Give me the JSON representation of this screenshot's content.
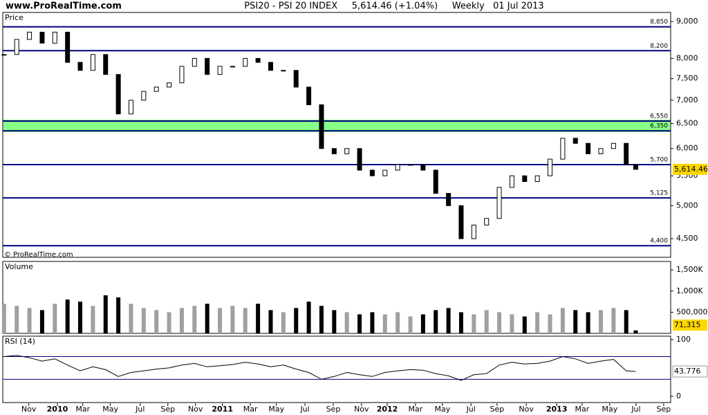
{
  "header": {
    "site": "www.ProRealTime.com",
    "title": "PSI20 - PSI 20 INDEX     5,614.46 (+1.04%)     Weekly   01 Jul 2013"
  },
  "chart_data": [
    {
      "type": "candlestick",
      "panel_label": "Price",
      "watermark": "© ProRealTime.com",
      "log_scale": true,
      "x": [
        0,
        4,
        8,
        12,
        16,
        20,
        24,
        28,
        32,
        36,
        40,
        44,
        48,
        52,
        56,
        60,
        64,
        68,
        72,
        76,
        80,
        84,
        88,
        92,
        96,
        100,
        104,
        108,
        112,
        116,
        120,
        124,
        128,
        132,
        136,
        140,
        144,
        148,
        152,
        156,
        160,
        164,
        168,
        172,
        176,
        180,
        184,
        188,
        192,
        196,
        199
      ],
      "values": [
        8100,
        8500,
        8700,
        8400,
        8700,
        7900,
        7700,
        8100,
        7600,
        6700,
        7000,
        7200,
        7300,
        7400,
        7800,
        8000,
        7600,
        7800,
        7800,
        8000,
        7900,
        7700,
        7700,
        7300,
        6900,
        6000,
        5900,
        6000,
        5600,
        5500,
        5600,
        5700,
        5700,
        5600,
        5200,
        5000,
        4500,
        4700,
        4800,
        5300,
        5500,
        5400,
        5500,
        5800,
        6200,
        6100,
        5900,
        6000,
        6100,
        5700,
        5614.46
      ],
      "last_value_label": "5,614.46",
      "xlim": [
        -0.4,
        210
      ],
      "ylim": [
        4240,
        9264
      ],
      "yticks": [
        {
          "value": 9000,
          "label": "9,000"
        },
        {
          "value": 8000,
          "label": "8,000"
        },
        {
          "value": 7500,
          "label": "7,500"
        },
        {
          "value": 7000,
          "label": "7,000"
        },
        {
          "value": 6500,
          "label": "6,500"
        },
        {
          "value": 6000,
          "label": "6,000"
        },
        {
          "value": 5500,
          "label": "5,500"
        },
        {
          "value": 5000,
          "label": "5,000"
        },
        {
          "value": 4500,
          "label": "4,500"
        }
      ],
      "xticks": [
        {
          "value": 7.8,
          "label": "Nov"
        },
        {
          "value": 16.8,
          "label": "2010"
        },
        {
          "value": 24.8,
          "label": "Mar"
        },
        {
          "value": 33.5,
          "label": "May"
        },
        {
          "value": 42.9,
          "label": "Jul"
        },
        {
          "value": 51.6,
          "label": "Sep"
        },
        {
          "value": 60.3,
          "label": "Nov"
        },
        {
          "value": 68.8,
          "label": "2011"
        },
        {
          "value": 77.6,
          "label": "Mar"
        },
        {
          "value": 85.8,
          "label": "May"
        },
        {
          "value": 94.8,
          "label": "Jul"
        },
        {
          "value": 103.7,
          "label": "Sep"
        },
        {
          "value": 112.6,
          "label": "Nov"
        },
        {
          "value": 120.7,
          "label": "2012"
        },
        {
          "value": 129.6,
          "label": "Mar"
        },
        {
          "value": 138.1,
          "label": "May"
        },
        {
          "value": 147.1,
          "label": "Jul"
        },
        {
          "value": 155.3,
          "label": "Sep"
        },
        {
          "value": 164.5,
          "label": "Nov"
        },
        {
          "value": 174.1,
          "label": "2013"
        },
        {
          "value": 182.1,
          "label": "Mar"
        },
        {
          "value": 190.8,
          "label": "May"
        },
        {
          "value": 199.1,
          "label": "Jul"
        },
        {
          "value": 207.8,
          "label": "Sep"
        }
      ],
      "levels": [
        {
          "value": 8850,
          "label": "8,850"
        },
        {
          "value": 8200,
          "label": "8,200"
        },
        {
          "value": 6550,
          "label": "6,550"
        },
        {
          "value": 6350,
          "label": "6,350"
        },
        {
          "value": 5700,
          "label": "5,700"
        },
        {
          "value": 5125,
          "label": "5,125"
        },
        {
          "value": 4400,
          "label": "4,400"
        }
      ],
      "level_color": "#000080",
      "band_color": "#66ff66"
    },
    {
      "type": "bar",
      "panel_label": "Volume",
      "x": [
        0,
        4,
        8,
        12,
        16,
        20,
        24,
        28,
        32,
        36,
        40,
        44,
        48,
        52,
        56,
        60,
        64,
        68,
        72,
        76,
        80,
        84,
        88,
        92,
        96,
        100,
        104,
        108,
        112,
        116,
        120,
        124,
        128,
        132,
        136,
        140,
        144,
        148,
        152,
        156,
        160,
        164,
        168,
        172,
        176,
        180,
        184,
        188,
        192,
        196,
        199
      ],
      "values": [
        700000,
        650000,
        600000,
        550000,
        700000,
        800000,
        750000,
        650000,
        900000,
        850000,
        700000,
        600000,
        550000,
        500000,
        600000,
        650000,
        700000,
        600000,
        650000,
        600000,
        700000,
        550000,
        500000,
        600000,
        750000,
        650000,
        550000,
        500000,
        450000,
        500000,
        450000,
        500000,
        400000,
        450000,
        550000,
        600000,
        500000,
        450000,
        550000,
        500000,
        450000,
        400000,
        500000,
        450000,
        600000,
        550000,
        500000,
        550000,
        600000,
        550000,
        71315
      ],
      "last_value_label": "71,315",
      "ylim": [
        0,
        1700000
      ],
      "yticks": [
        {
          "value": 500000,
          "label": "500,000"
        },
        {
          "value": 1000000,
          "label": "1,000K"
        },
        {
          "value": 1500000,
          "label": "1,500K"
        }
      ],
      "colors": {
        "up": "#a0a0a0",
        "down": "#000000"
      }
    },
    {
      "type": "line",
      "panel_label": "RSI (14)",
      "x": [
        0,
        4,
        8,
        12,
        16,
        20,
        24,
        28,
        32,
        36,
        40,
        44,
        48,
        52,
        56,
        60,
        64,
        68,
        72,
        76,
        80,
        84,
        88,
        92,
        96,
        100,
        104,
        108,
        112,
        116,
        120,
        124,
        128,
        132,
        136,
        140,
        144,
        148,
        152,
        156,
        160,
        164,
        168,
        172,
        176,
        180,
        184,
        188,
        192,
        196,
        199
      ],
      "values": [
        70,
        72,
        68,
        62,
        66,
        55,
        45,
        52,
        47,
        35,
        42,
        45,
        48,
        50,
        55,
        58,
        52,
        54,
        56,
        60,
        57,
        52,
        55,
        48,
        42,
        30,
        35,
        42,
        38,
        35,
        42,
        45,
        47,
        46,
        40,
        36,
        28,
        38,
        40,
        55,
        60,
        57,
        58,
        62,
        70,
        66,
        58,
        62,
        65,
        45,
        43.776
      ],
      "ylim": [
        -11,
        106
      ],
      "yticks": [
        0,
        100
      ],
      "levels": [
        70,
        30
      ],
      "color": "#000000",
      "level_color": "#000080"
    }
  ]
}
